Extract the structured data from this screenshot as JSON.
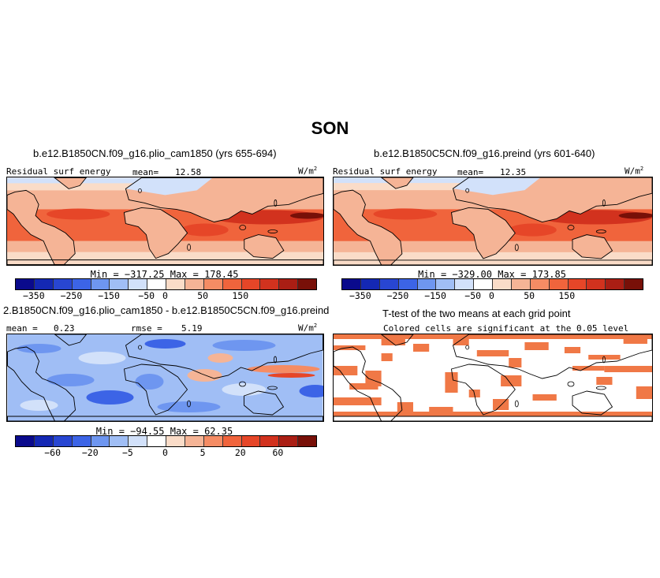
{
  "figure": {
    "season": "SON",
    "units_prefix": "W/m",
    "units_exp": "2"
  },
  "panels": [
    {
      "title": "b.e12.B1850CN.f09_g16.plio_cam1850 (yrs 655-694)",
      "variable": "Residual surf energy",
      "stat_label": "mean=",
      "stat_value": "12.58",
      "minmax": "Min = −317.25 Max = 178.45"
    },
    {
      "title": "b.e12.B1850C5CN.f09_g16.preind (yrs 601-640)",
      "variable": "Residual surf energy",
      "stat_label": "mean=",
      "stat_value": "12.35",
      "minmax": "Min = −329.00 Max = 173.85"
    },
    {
      "title": "2.B1850CN.f09_g16.plio_cam1850 - b.e12.B1850C5CN.f09_g16.preind",
      "variable": "mean =",
      "variable_value": "0.23",
      "stat_label": "rmse =",
      "stat_value": "5.19",
      "minmax": "Min = −94.55 Max =  62.35"
    },
    {
      "title": "T-test of the two means at each grid point",
      "subtitle": "Colored cells are significant at the 0.05 level"
    }
  ],
  "colorbars": {
    "colors": [
      "#0a0a8c",
      "#1428b4",
      "#2846d2",
      "#3c64e6",
      "#6e96f0",
      "#a0bef5",
      "#d2e1fa",
      "#ffffff",
      "#fadcc8",
      "#f5b496",
      "#f58c64",
      "#f0643c",
      "#e64628",
      "#d2321e",
      "#aa1e14",
      "#781008"
    ],
    "abs": {
      "ticks": [
        "−350",
        "−250",
        "−150",
        "−50",
        "0",
        "50",
        "150"
      ],
      "tick_index": [
        1,
        3,
        5,
        7,
        8,
        10,
        12
      ]
    },
    "diff": {
      "ticks": [
        "−60",
        "−20",
        "−5",
        "0",
        "5",
        "20",
        "60"
      ],
      "tick_index": [
        2,
        4,
        6,
        8,
        10,
        12,
        14
      ]
    }
  },
  "ttest_color": "#f07846"
}
